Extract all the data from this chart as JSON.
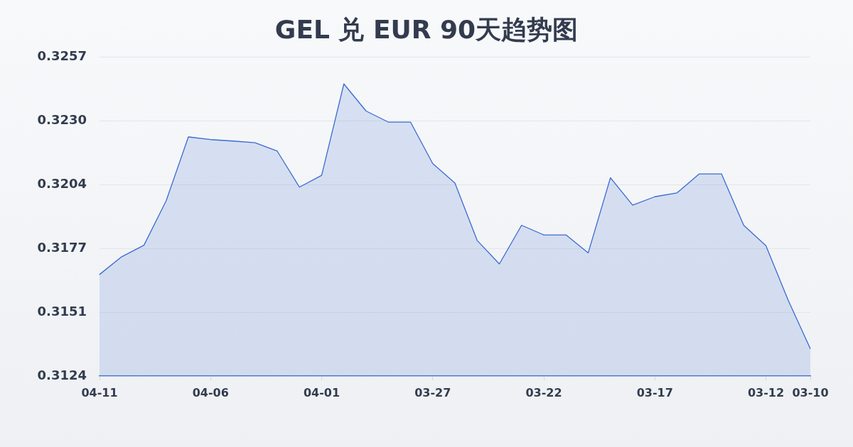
{
  "chart_data": {
    "type": "area",
    "title": "GEL 兑 EUR 90天趋势图",
    "categories": [
      "04-11",
      null,
      null,
      null,
      null,
      "04-06",
      null,
      null,
      null,
      null,
      "04-01",
      null,
      null,
      null,
      null,
      "03-27",
      null,
      null,
      null,
      null,
      "03-22",
      null,
      null,
      null,
      null,
      "03-17",
      null,
      null,
      null,
      null,
      "03-12",
      null,
      "03-10"
    ],
    "values": [
      0.31663,
      0.31737,
      0.31785,
      0.3197,
      0.32236,
      0.32225,
      0.32219,
      0.32212,
      0.32177,
      0.32027,
      0.32076,
      0.32457,
      0.32344,
      0.32298,
      0.32298,
      0.32125,
      0.32044,
      0.31805,
      0.31707,
      0.31868,
      0.31828,
      0.31828,
      0.31753,
      0.32066,
      0.31952,
      0.31987,
      0.32003,
      0.32082,
      0.32082,
      0.31868,
      0.31783,
      0.31556,
      0.31354
    ],
    "color": "#3a6bd1",
    "ylim": [
      0.3124,
      0.3257
    ],
    "yticks": [
      0.3124,
      {
        "value": 0.31506,
        "label": "0.3151"
      },
      {
        "value": 0.31772,
        "label": "0.3177"
      },
      {
        "value": 0.32038,
        "label": "0.3204"
      },
      {
        "value": 0.32304,
        "label": "0.3230"
      },
      0.3257
    ],
    "grid": "y"
  }
}
